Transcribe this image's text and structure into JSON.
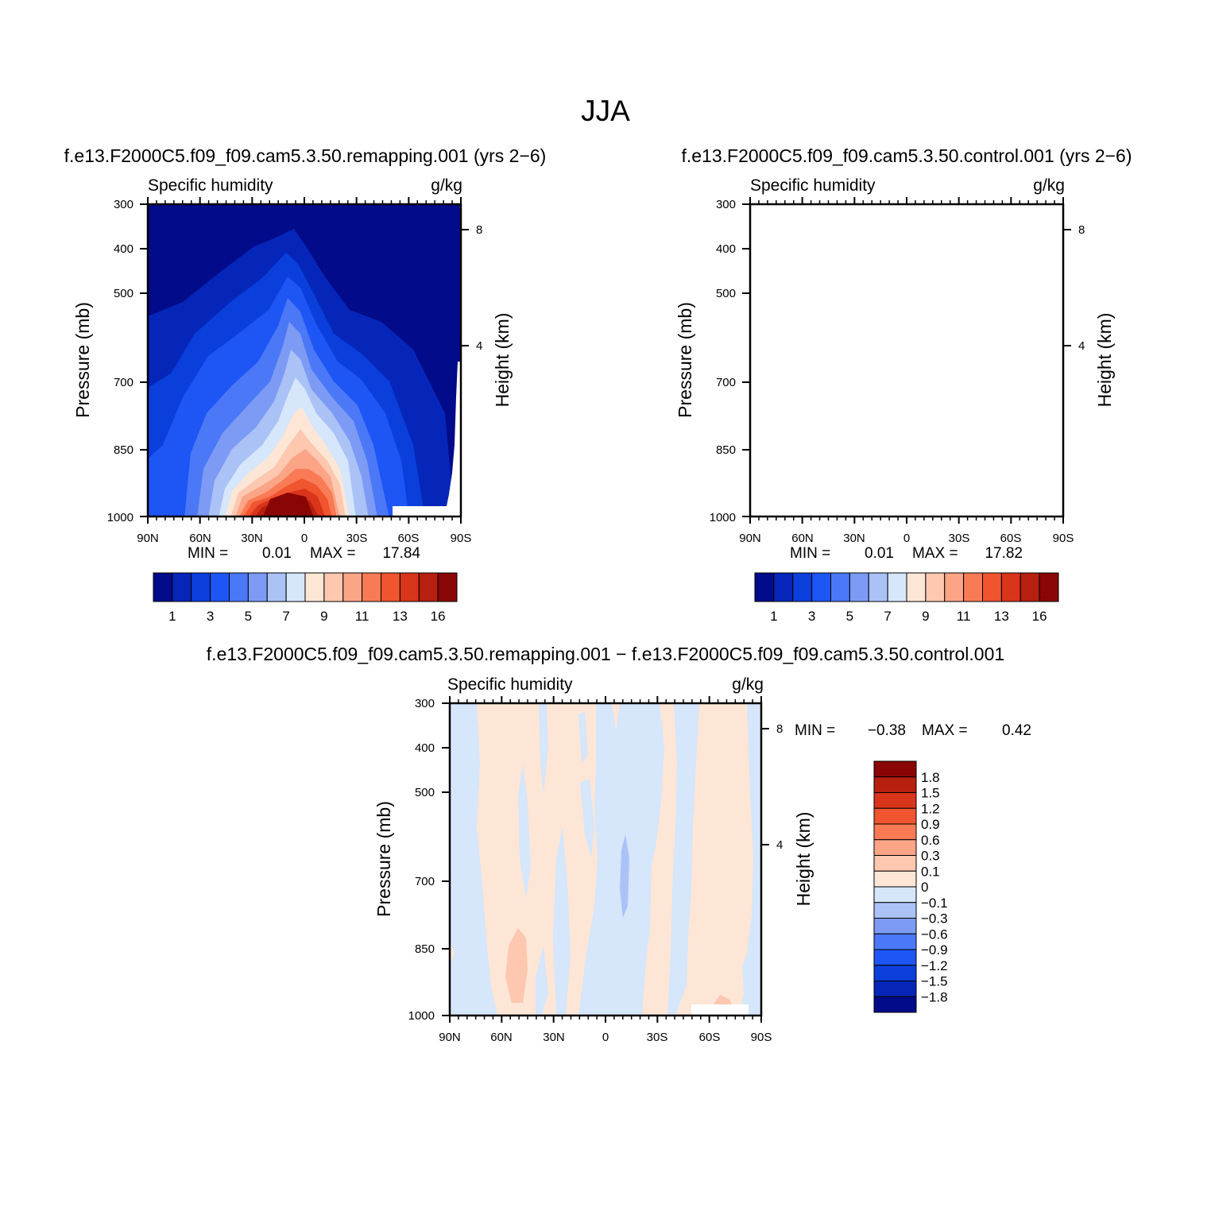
{
  "figure_title": "JJA",
  "chart_data": [
    {
      "type": "heatmap",
      "panel_id": "remapping",
      "title": "f.e13.F2000C5.f09_f09.cam5.3.50.remapping.001 (yrs 2−6)",
      "left_string": "Specific humidity",
      "right_string": "g/kg",
      "xlabel": "",
      "ylabel": "Pressure (mb)",
      "y2label": "Height (km)",
      "x_ticks": [
        "90N",
        "60N",
        "30N",
        "0",
        "30S",
        "60S",
        "90S"
      ],
      "y_ticks": [
        "300",
        "400",
        "500",
        "700",
        "850",
        "1000"
      ],
      "y2_ticks": [
        "8",
        "4"
      ],
      "ylim": [
        1000,
        300
      ],
      "min_label": "MIN =",
      "min_value": "0.01",
      "max_label": "MAX =",
      "max_value": "17.84",
      "colorbar_labels": [
        "1",
        "3",
        "5",
        "7",
        "9",
        "11",
        "13",
        "16"
      ],
      "colorbar_colors": [
        "#020b8a",
        "#0526b8",
        "#0a3fdc",
        "#1e55f5",
        "#4a78f7",
        "#7d9bf5",
        "#abc2f6",
        "#d6e6fb",
        "#fde6d6",
        "#fdc7b0",
        "#fba486",
        "#f97b55",
        "#f0552f",
        "#d9351a",
        "#b71f0e",
        "#8a0606"
      ]
    },
    {
      "type": "heatmap",
      "panel_id": "control",
      "title": "f.e13.F2000C5.f09_f09.cam5.3.50.control.001 (yrs 2−6)",
      "left_string": "Specific humidity",
      "right_string": "g/kg",
      "xlabel": "",
      "ylabel": "Pressure (mb)",
      "y2label": "Height (km)",
      "x_ticks": [
        "90N",
        "60N",
        "30N",
        "0",
        "30S",
        "60S",
        "90S"
      ],
      "y_ticks": [
        "300",
        "400",
        "500",
        "700",
        "850",
        "1000"
      ],
      "y2_ticks": [
        "8",
        "4"
      ],
      "ylim": [
        1000,
        300
      ],
      "min_label": "MIN =",
      "min_value": "0.01",
      "max_label": "MAX =",
      "max_value": "17.82",
      "colorbar_labels": [
        "1",
        "3",
        "5",
        "7",
        "9",
        "11",
        "13",
        "16"
      ],
      "colorbar_colors": [
        "#020b8a",
        "#0526b8",
        "#0a3fdc",
        "#1e55f5",
        "#4a78f7",
        "#7d9bf5",
        "#abc2f6",
        "#d6e6fb",
        "#fde6d6",
        "#fdc7b0",
        "#fba486",
        "#f97b55",
        "#f0552f",
        "#d9351a",
        "#b71f0e",
        "#8a0606"
      ]
    },
    {
      "type": "heatmap",
      "panel_id": "difference",
      "title": "f.e13.F2000C5.f09_f09.cam5.3.50.remapping.001 − f.e13.F2000C5.f09_f09.cam5.3.50.control.001",
      "left_string": "Specific humidity",
      "right_string": "g/kg",
      "xlabel": "",
      "ylabel": "Pressure (mb)",
      "y2label": "Height (km)",
      "x_ticks": [
        "90N",
        "60N",
        "30N",
        "0",
        "30S",
        "60S",
        "90S"
      ],
      "y_ticks": [
        "300",
        "400",
        "500",
        "700",
        "850",
        "1000"
      ],
      "y2_ticks": [
        "8",
        "4"
      ],
      "ylim": [
        1000,
        300
      ],
      "min_label": "MIN =",
      "min_value": "−0.38",
      "max_label": "MAX =",
      "max_value": "0.42",
      "colorbar_labels": [
        "1.8",
        "1.5",
        "1.2",
        "0.9",
        "0.6",
        "0.3",
        "0.1",
        "0",
        "−0.1",
        "−0.3",
        "−0.6",
        "−0.9",
        "−1.2",
        "−1.5",
        "−1.8"
      ],
      "colorbar_colors": [
        "#8a0606",
        "#b71f0e",
        "#d9351a",
        "#f0552f",
        "#f97b55",
        "#fba486",
        "#fdc7b0",
        "#fde6d6",
        "#d6e6fb",
        "#abc2f6",
        "#7d9bf5",
        "#4a78f7",
        "#1e55f5",
        "#0a3fdc",
        "#0526b8",
        "#020b8a"
      ]
    }
  ]
}
